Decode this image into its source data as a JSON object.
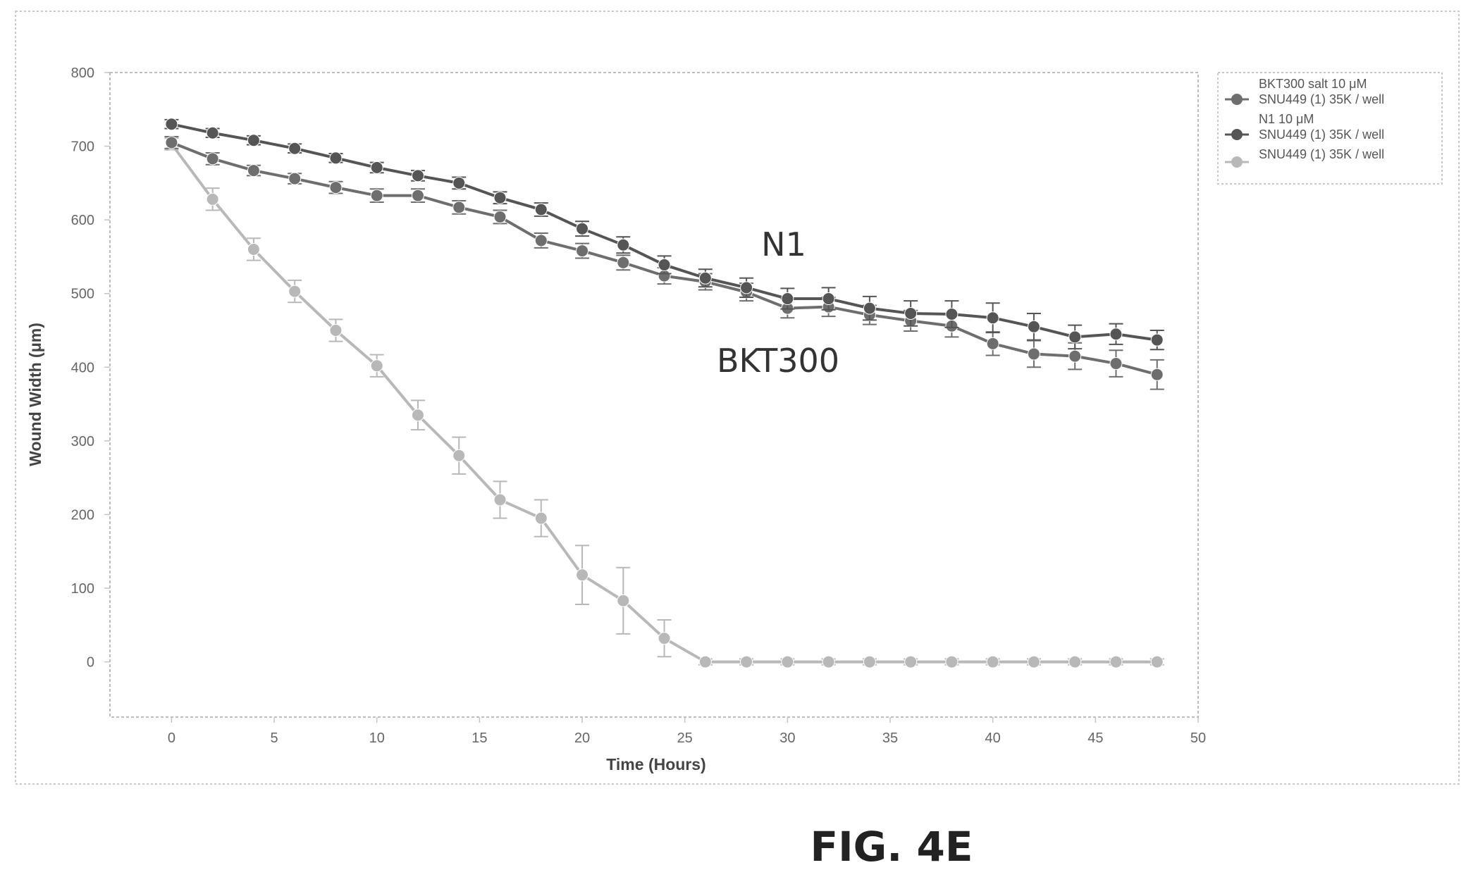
{
  "chart_data": {
    "type": "line",
    "xlabel": "Time (Hours)",
    "ylabel": "Wound Width (μm)",
    "xlim": [
      -3,
      50
    ],
    "ylim": [
      -75,
      800
    ],
    "xticks": [
      0,
      5,
      10,
      15,
      20,
      25,
      30,
      35,
      40,
      45,
      50
    ],
    "yticks": [
      0,
      100,
      200,
      300,
      400,
      500,
      600,
      700,
      800
    ],
    "grid": false,
    "legend_position": "right",
    "series": [
      {
        "name": "BKT300 salt 10 μM SNU449 (1) 35K / well",
        "legend_lines": [
          "BKT300 salt 10 μM",
          "SNU449 (1) 35K / well"
        ],
        "color": "#6e6e6e",
        "x": [
          0,
          2,
          4,
          6,
          8,
          10,
          12,
          14,
          16,
          18,
          20,
          22,
          24,
          26,
          28,
          30,
          32,
          34,
          36,
          38,
          40,
          42,
          44,
          46,
          48
        ],
        "y": [
          705,
          683,
          667,
          656,
          644,
          633,
          633,
          617,
          604,
          572,
          558,
          542,
          524,
          516,
          502,
          480,
          482,
          471,
          463,
          456,
          432,
          418,
          415,
          405,
          390
        ],
        "error": [
          8,
          8,
          7,
          7,
          8,
          9,
          9,
          9,
          9,
          10,
          10,
          10,
          11,
          11,
          12,
          13,
          13,
          13,
          14,
          15,
          16,
          18,
          18,
          18,
          20
        ]
      },
      {
        "name": "N1 10 μM SNU449 (1) 35K / well",
        "legend_lines": [
          "N1 10 μM",
          "SNU449 (1) 35K / well"
        ],
        "color": "#555555",
        "x": [
          0,
          2,
          4,
          6,
          8,
          10,
          12,
          14,
          16,
          18,
          20,
          22,
          24,
          26,
          28,
          30,
          32,
          34,
          36,
          38,
          40,
          42,
          44,
          46,
          48
        ],
        "y": [
          730,
          718,
          708,
          697,
          684,
          671,
          660,
          650,
          630,
          614,
          588,
          566,
          539,
          521,
          508,
          493,
          493,
          480,
          473,
          472,
          467,
          455,
          441,
          445,
          437
        ],
        "error": [
          6,
          6,
          6,
          6,
          6,
          7,
          7,
          8,
          8,
          9,
          10,
          11,
          12,
          12,
          13,
          14,
          15,
          16,
          17,
          18,
          20,
          18,
          16,
          14,
          13
        ]
      },
      {
        "name": "SNU449 (1) 35K / well",
        "legend_lines": [
          "SNU449 (1) 35K / well"
        ],
        "color": "#b8b8b8",
        "x": [
          0,
          2,
          4,
          6,
          8,
          10,
          12,
          14,
          16,
          18,
          20,
          22,
          24,
          26,
          28,
          30,
          32,
          34,
          36,
          38,
          40,
          42,
          44,
          46,
          48
        ],
        "y": [
          703,
          628,
          560,
          503,
          450,
          402,
          335,
          280,
          220,
          195,
          118,
          83,
          32,
          0,
          0,
          0,
          0,
          0,
          0,
          0,
          0,
          0,
          0,
          0,
          0
        ],
        "error": [
          8,
          15,
          15,
          15,
          15,
          15,
          20,
          25,
          25,
          25,
          40,
          45,
          25,
          4,
          4,
          4,
          4,
          4,
          4,
          4,
          4,
          4,
          4,
          4,
          4
        ]
      }
    ],
    "annotations": [
      "N1",
      "BKT300"
    ]
  },
  "caption": "FIG. 4E"
}
